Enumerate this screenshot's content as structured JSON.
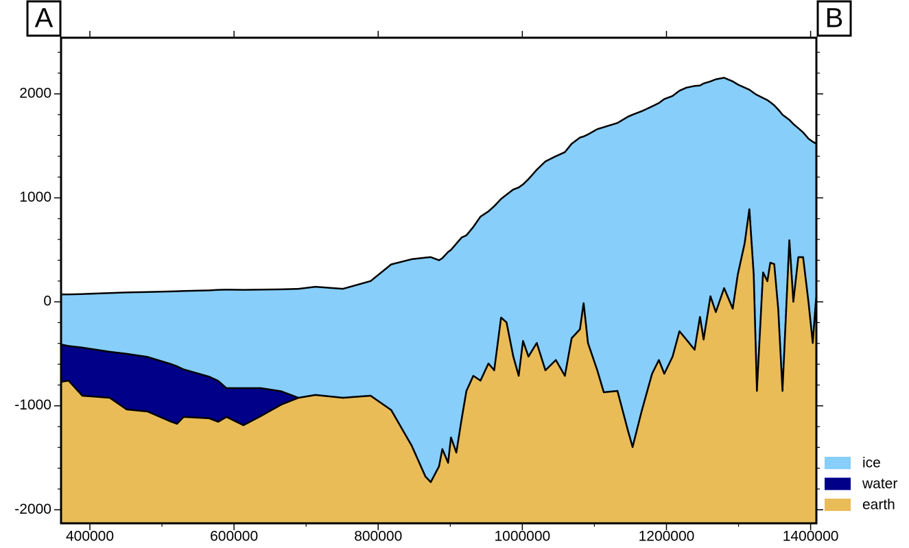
{
  "chart_data": {
    "type": "area",
    "annotations": [
      "A",
      "B"
    ],
    "x": [
      360000,
      370500,
      389500,
      427500,
      451000,
      480000,
      513000,
      521000,
      530000,
      565500,
      578000,
      589500,
      613000,
      637000,
      665500,
      689500,
      713000,
      751000,
      789500,
      818000,
      846500,
      865500,
      873000,
      884500,
      889000,
      897000,
      901000,
      908500,
      916000,
      922500,
      932000,
      942000,
      953000,
      961000,
      970500,
      978000,
      987500,
      995000,
      1001000,
      1008500,
      1020000,
      1032000,
      1046500,
      1059000,
      1068500,
      1080000,
      1085000,
      1091000,
      1104000,
      1113000,
      1132000,
      1146500,
      1153000,
      1165500,
      1180000,
      1189500,
      1197000,
      1208500,
      1218000,
      1227500,
      1239000,
      1246500,
      1251500,
      1261000,
      1268500,
      1280000,
      1292000,
      1299000,
      1308500,
      1315000,
      1321000,
      1325500,
      1334000,
      1340000,
      1344000,
      1349500,
      1355000,
      1361000,
      1370500,
      1376000,
      1383000,
      1389500,
      1397000,
      1403000,
      1408000
    ],
    "series": [
      {
        "name": "ice",
        "color": "#87cefa",
        "values": [
          72,
          72,
          75,
          85,
          90,
          95,
          100,
          102,
          105,
          110,
          115,
          118,
          115,
          118,
          120,
          125,
          145,
          125,
          200,
          360,
          410,
          425,
          430,
          400,
          420,
          480,
          500,
          560,
          620,
          640,
          720,
          820,
          870,
          920,
          990,
          1030,
          1080,
          1100,
          1130,
          1180,
          1270,
          1350,
          1400,
          1440,
          1520,
          1580,
          1590,
          1610,
          1661,
          1680,
          1720,
          1780,
          1800,
          1833,
          1880,
          1912,
          1950,
          1980,
          2030,
          2060,
          2076,
          2080,
          2100,
          2120,
          2140,
          2155,
          2120,
          2090,
          2060,
          2040,
          2010,
          1990,
          1960,
          1940,
          1920,
          1890,
          1850,
          1800,
          1750,
          1710,
          1670,
          1630,
          1570,
          1540,
          1520
        ]
      },
      {
        "name": "water",
        "color": "#000088",
        "values": [
          -410,
          -425,
          -440,
          -480,
          -500,
          -530,
          -600,
          -620,
          -650,
          -720,
          -760,
          -830,
          -830,
          -830,
          -860,
          -923,
          -896,
          -923,
          -903,
          -1041,
          -1384,
          -1681,
          -1734,
          -1582,
          -1417,
          -1549,
          -1305,
          -1450,
          -1121,
          -857,
          -712,
          -758,
          -593,
          -659,
          -152,
          -198,
          -527,
          -712,
          -376,
          -527,
          -396,
          -659,
          -560,
          -712,
          -350,
          -264,
          -13,
          -396,
          -659,
          -870,
          -857,
          -1239,
          -1397,
          -1055,
          -692,
          -560,
          -692,
          -527,
          -283,
          -363,
          -461,
          -145,
          -363,
          53,
          -99,
          132,
          -66,
          264,
          563,
          890,
          264,
          -857,
          283,
          198,
          376,
          363,
          -66,
          -857,
          593,
          0,
          429,
          429,
          0,
          -396,
          66
        ]
      },
      {
        "name": "earth",
        "color": "#e9bc58",
        "values": [
          -770,
          -758,
          -903,
          -923,
          -1035,
          -1055,
          -1154,
          -1173,
          -1107,
          -1120,
          -1154,
          -1107,
          -1187,
          -1100,
          -989,
          -923,
          -896,
          -923,
          -903,
          -1041,
          -1384,
          -1681,
          -1734,
          -1582,
          -1417,
          -1549,
          -1305,
          -1450,
          -1121,
          -857,
          -712,
          -758,
          -593,
          -659,
          -152,
          -198,
          -527,
          -712,
          -376,
          -527,
          -396,
          -659,
          -560,
          -712,
          -350,
          -264,
          -13,
          -396,
          -659,
          -870,
          -857,
          -1239,
          -1397,
          -1055,
          -692,
          -560,
          -692,
          -527,
          -283,
          -363,
          -461,
          -145,
          -363,
          53,
          -99,
          132,
          -66,
          264,
          563,
          890,
          264,
          -857,
          283,
          198,
          376,
          363,
          -66,
          -857,
          593,
          0,
          429,
          429,
          0,
          -396,
          66
        ]
      }
    ],
    "xlim": [
      360000,
      1408000
    ],
    "ylim": [
      -2130,
      2540
    ],
    "xticks": [
      400000,
      600000,
      800000,
      1000000,
      1200000,
      1400000
    ],
    "xminorticks": [
      500000,
      700000,
      900000,
      1100000,
      1300000
    ],
    "yticks": [
      -2000,
      -1000,
      0,
      1000,
      2000
    ],
    "yminorticks": [
      -1800,
      -1600,
      -1400,
      -1200,
      -800,
      -600,
      -400,
      -200,
      200,
      400,
      600,
      800,
      1200,
      1400,
      1600,
      1800,
      2200,
      2400
    ],
    "legend": "right-bottom"
  }
}
